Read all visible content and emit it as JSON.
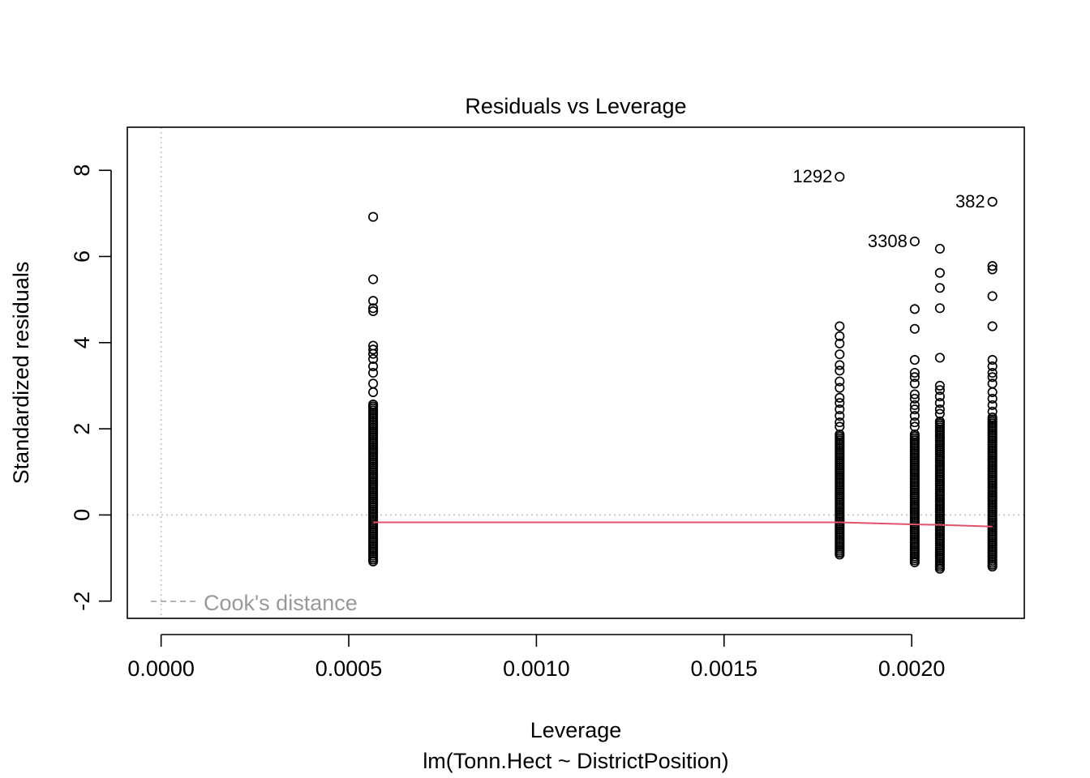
{
  "chart_data": {
    "type": "scatter",
    "title": "Residuals vs Leverage",
    "xlabel": "Leverage",
    "subtitle": "lm(Tonn.Hect ~ DistrictPosition)",
    "ylabel": "Standardized residuals",
    "xlim": [
      -9e-05,
      0.0023
    ],
    "ylim": [
      -2.4,
      9.0
    ],
    "x_ticks": [
      {
        "value": 0.0,
        "label": "0.0000"
      },
      {
        "value": 0.0005,
        "label": "0.0005"
      },
      {
        "value": 0.001,
        "label": "0.0010"
      },
      {
        "value": 0.0015,
        "label": "0.0015"
      },
      {
        "value": 0.002,
        "label": "0.0020"
      }
    ],
    "y_ticks": [
      {
        "value": -2,
        "label": "-2"
      },
      {
        "value": 0,
        "label": "0"
      },
      {
        "value": 2,
        "label": "2"
      },
      {
        "value": 4,
        "label": "4"
      },
      {
        "value": 6,
        "label": "6"
      },
      {
        "value": 8,
        "label": "8"
      }
    ],
    "grid": false,
    "reference_lines": {
      "x": 0,
      "y": 0,
      "color": "#BEBEBE",
      "style": "dotted"
    },
    "legend": {
      "label": "Cook's distance",
      "position": "bottom-left",
      "color": "#999999",
      "style": "dashed"
    },
    "groups": [
      {
        "leverage": 0.000565,
        "residual_min": -1.08,
        "residual_max": 2.6,
        "outliers": [
          6.92,
          5.47,
          4.97,
          4.8,
          4.73,
          3.93,
          3.84,
          3.74,
          3.62,
          3.45,
          3.3,
          3.05,
          2.85
        ]
      },
      {
        "leverage": 0.001808,
        "residual_min": -0.92,
        "residual_max": 1.9,
        "outliers": [
          7.85,
          4.38,
          4.15,
          3.98,
          3.73,
          3.48,
          3.35,
          3.1,
          2.95,
          2.72,
          2.6,
          2.45,
          2.3,
          2.15,
          2.05
        ]
      },
      {
        "leverage": 0.002008,
        "residual_min": -1.1,
        "residual_max": 1.9,
        "outliers": [
          6.35,
          4.78,
          4.32,
          3.6,
          3.3,
          3.2,
          3.05,
          2.8,
          2.7,
          2.55,
          2.45,
          2.3,
          2.15,
          2.05
        ]
      },
      {
        "leverage": 0.002075,
        "residual_min": -1.25,
        "residual_max": 2.2,
        "outliers": [
          6.18,
          5.62,
          5.27,
          4.8,
          3.65,
          3.0,
          2.9,
          2.75,
          2.6,
          2.45,
          2.35
        ]
      },
      {
        "leverage": 0.002215,
        "residual_min": -1.2,
        "residual_max": 2.3,
        "outliers": [
          7.27,
          5.78,
          5.7,
          5.08,
          4.38,
          3.6,
          3.45,
          3.3,
          3.2,
          3.05,
          2.85,
          2.7,
          2.55,
          2.4
        ]
      }
    ],
    "labeled_points": [
      {
        "label": "1292",
        "x": 0.001808,
        "y": 7.85
      },
      {
        "label": "382",
        "x": 0.002215,
        "y": 7.27
      },
      {
        "label": "3308",
        "x": 0.002008,
        "y": 6.35
      }
    ],
    "smooth_line": {
      "color": "#DF536B",
      "points": [
        [
          0.000565,
          -0.17
        ],
        [
          0.001808,
          -0.17
        ],
        [
          0.002008,
          -0.22
        ],
        [
          0.002075,
          -0.23
        ],
        [
          0.002215,
          -0.27
        ]
      ]
    }
  }
}
